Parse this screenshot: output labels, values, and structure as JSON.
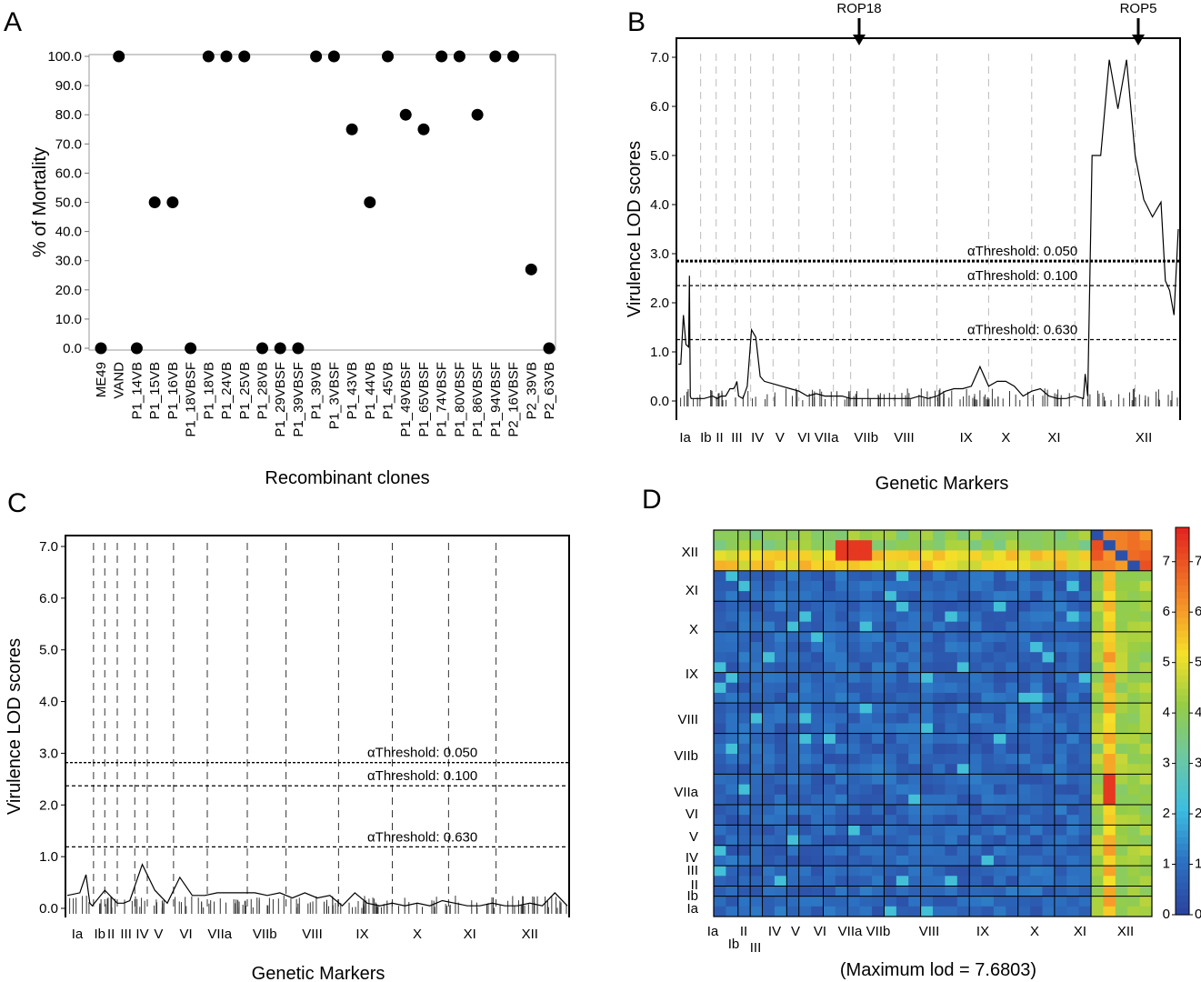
{
  "panel_letters": {
    "a": "A",
    "b": "B",
    "c": "C",
    "d": "D"
  },
  "colors": {
    "points": "#000000",
    "heat_low": "#2b3f9b",
    "heat_high": "#e3261f"
  },
  "chart_data": [
    {
      "id": "A",
      "type": "scatter",
      "ylabel": "% of Mortality",
      "xlabel": "Recombinant clones",
      "ylim": [
        0,
        100
      ],
      "yticks": [
        "0.0",
        "10.0",
        "20.0",
        "30.0",
        "40.0",
        "50.0",
        "60.0",
        "70.0",
        "80.0",
        "90.0",
        "100.0"
      ],
      "categories": [
        "ME49",
        "VAND",
        "P1_14VB",
        "P1_15VB",
        "P1_16VB",
        "P1_18VBSF",
        "P1_18VB",
        "P1_24VB",
        "P1_25VB",
        "P1_28VB",
        "P1_29VBSF",
        "P1_39VBSF",
        "P1_39VB",
        "P1_3VBSF",
        "P1_43VB",
        "P1_44VB",
        "P1_45VB",
        "P1_49VBSF",
        "P1_65VBSF",
        "P1_74VBSF",
        "P1_80VBSF",
        "P1_86VBSF",
        "P1_94VBSF",
        "P2_16VBSF",
        "P2_39VB",
        "P2_63VB"
      ],
      "values": [
        0,
        100,
        0,
        50,
        50,
        0,
        100,
        100,
        100,
        0,
        0,
        0,
        100,
        100,
        75,
        50,
        100,
        80,
        75,
        100,
        100,
        80,
        100,
        100,
        27,
        0
      ],
      "grid": false
    },
    {
      "id": "B",
      "type": "line",
      "ylabel": "Virulence LOD scores",
      "xlabel": "Genetic Markers",
      "ylim": [
        0,
        7
      ],
      "yticks": [
        "0.0",
        "1.0",
        "2.0",
        "3.0",
        "4.0",
        "5.0",
        "6.0",
        "7.0"
      ],
      "chromosomes": [
        "Ia",
        "Ib",
        "II",
        "III",
        "IV",
        "V",
        "VI",
        "VIIa",
        "VIIb",
        "VIII",
        "IX",
        "X",
        "XI",
        "XII"
      ],
      "annotations": [
        {
          "label": "ROP18",
          "chromosome": "VIIa"
        },
        {
          "label": "ROP5",
          "chromosome": "XII"
        }
      ],
      "thresholds": [
        {
          "label": "αThreshold: 0.050",
          "value": 2.85
        },
        {
          "label": "αThreshold: 0.100",
          "value": 2.35
        },
        {
          "label": "αThreshold:  0.630",
          "value": 1.25
        }
      ],
      "x": [
        0,
        0.3,
        0.6,
        0.9,
        1.2,
        1.3,
        1.35,
        1.4,
        1.5,
        1.6,
        1.7,
        2,
        3,
        4,
        4.5,
        5,
        5.5,
        6,
        6.4,
        6.6,
        6.8,
        7,
        7.5,
        8,
        8.5,
        9,
        9.5,
        10,
        11,
        12,
        13,
        14,
        15,
        16,
        17,
        18,
        19,
        20,
        21,
        22,
        23,
        24,
        25,
        26,
        27,
        28,
        29,
        30,
        31,
        32,
        33,
        34,
        35,
        36,
        37,
        38,
        39,
        40,
        41,
        42,
        43,
        44,
        45,
        46,
        47,
        47.2,
        47.5,
        48,
        49,
        50,
        51,
        52,
        53,
        54,
        55,
        56,
        56.5,
        57,
        57.5,
        58
      ],
      "y": [
        0.75,
        0.75,
        1.75,
        1.15,
        1.1,
        2.55,
        1.2,
        0.1,
        0.05,
        0.05,
        0.05,
        0.05,
        0.05,
        0.1,
        0.05,
        0.1,
        0.1,
        0.25,
        0.25,
        0.3,
        0.4,
        0.1,
        0.05,
        0.3,
        1.45,
        1.3,
        0.5,
        0.4,
        0.35,
        0.3,
        0.25,
        0.2,
        0.1,
        0.15,
        0.1,
        0.1,
        0.1,
        0.05,
        0.05,
        0.05,
        0.05,
        0.05,
        0.05,
        0.05,
        0.05,
        0.1,
        0.05,
        0.1,
        0.2,
        0.25,
        0.25,
        0.3,
        0.7,
        0.3,
        0.4,
        0.4,
        0.3,
        0.1,
        0.2,
        0.25,
        0.1,
        0.05,
        0.05,
        0.1,
        0.05,
        0.55,
        0.1,
        5.0,
        5.0,
        6.95,
        5.95,
        6.95,
        5.0,
        4.1,
        3.75,
        4.05,
        2.45,
        2.25,
        1.75,
        3.5
      ],
      "xmax": 58,
      "chrom_x": [
        0.4,
        1.6,
        2.4,
        3.4,
        4.6,
        5.9,
        7.3,
        8.6,
        10.9,
        13.1,
        16.7,
        19.0,
        21.8,
        27.0
      ],
      "chrom_bounds": [
        1.3,
        2.2,
        3.3,
        4.2,
        5.5,
        7.0,
        9.0,
        10.0,
        12.5,
        15.0,
        18.0,
        20.5,
        23.0,
        26.5
      ],
      "grid": false
    },
    {
      "id": "C",
      "type": "line",
      "ylabel": "Virulence LOD scores",
      "xlabel": "Genetic Markers",
      "ylim": [
        0,
        7
      ],
      "yticks": [
        "0.0",
        "1.0",
        "2.0",
        "3.0",
        "4.0",
        "5.0",
        "6.0",
        "7.0"
      ],
      "chromosomes": [
        "Ia",
        "Ib",
        "II",
        "III",
        "IV",
        "V",
        "VI",
        "VIIa",
        "VIIb",
        "VIII",
        "IX",
        "X",
        "XI",
        "XII"
      ],
      "thresholds": [
        {
          "label": "αThreshold: 0.050",
          "value": 2.82
        },
        {
          "label": "αThreshold: 0.100",
          "value": 2.37
        },
        {
          "label": "αThreshold: 0.630",
          "value": 1.19
        }
      ],
      "x": [
        0,
        1,
        1.5,
        1.8,
        2,
        3,
        4,
        4.5,
        5,
        6,
        7,
        8,
        9,
        10,
        11,
        12,
        13,
        14,
        15,
        16,
        17,
        18,
        19,
        20,
        21,
        22,
        23,
        24,
        25,
        26,
        27,
        28,
        29,
        30,
        31,
        32,
        33,
        34,
        35,
        36,
        37,
        38,
        39,
        40
      ],
      "y": [
        0.25,
        0.3,
        0.65,
        0.1,
        0.05,
        0.35,
        0.1,
        0.1,
        0.15,
        0.85,
        0.35,
        0.1,
        0.6,
        0.25,
        0.25,
        0.3,
        0.3,
        0.3,
        0.3,
        0.25,
        0.3,
        0.2,
        0.3,
        0.2,
        0.25,
        0.05,
        0.3,
        0.1,
        0.05,
        0.1,
        0.05,
        0.1,
        0.05,
        0.15,
        0.1,
        0.05,
        0.05,
        0.1,
        0.05,
        0.05,
        0.1,
        0.05,
        0.3,
        0.05
      ],
      "xmax": 40,
      "chrom_bounds": [
        2.1,
        3.0,
        4.0,
        5.4,
        6.4,
        8.5,
        11.2,
        14.4,
        17.5,
        21.7,
        26.0,
        30.5,
        34.3
      ],
      "chrom_x": [
        0.8,
        2.6,
        3.5,
        4.7,
        6.0,
        7.3,
        9.5,
        12.2,
        15.8,
        19.6,
        23.6,
        28.0,
        32.2,
        37.0
      ],
      "grid": false
    },
    {
      "id": "D",
      "type": "heatmap",
      "xlabel": "(Maximum  lod = 7.6803)",
      "row_labels": [
        "XII",
        "XI",
        "X",
        "IX",
        "VIII",
        "VIIb",
        "VIIa",
        "VI",
        "V",
        "IV",
        "III",
        "II",
        "Ib",
        "Ia"
      ],
      "col_labels": [
        "Ia",
        "Ib",
        "II",
        "III",
        "IV",
        "V",
        "VI",
        "VIIa",
        "VIIb",
        "VIII",
        "IX",
        "X",
        "XI",
        "XII"
      ],
      "colorbar_ticks": [
        "0",
        "1",
        "2",
        "3",
        "4",
        "5",
        "6",
        "7"
      ],
      "colorbar_range": [
        0,
        7.6803
      ]
    }
  ]
}
